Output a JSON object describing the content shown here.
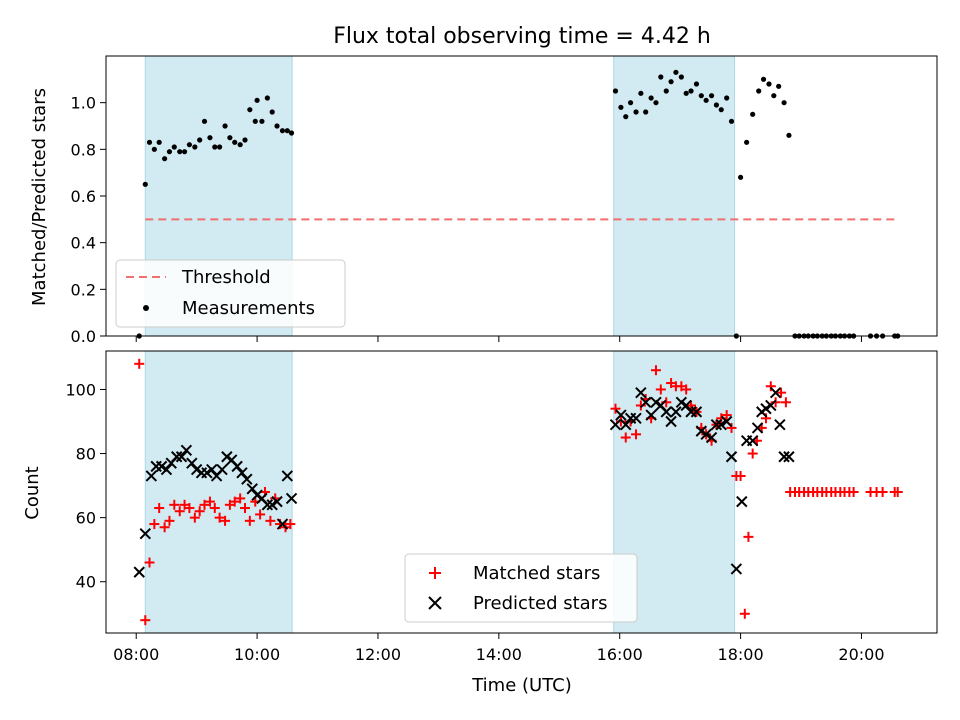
{
  "title": "Flux total observing time = 4.42 h",
  "colors": {
    "shade": "#add8e6",
    "threshold": "#f07070",
    "measurement": "#000000",
    "matched": "#ff0000",
    "predicted": "#000000"
  },
  "chart_data": [
    {
      "type": "scatter",
      "ylabel": "Matched/Predicted stars",
      "xlim": [
        7.5,
        21.25
      ],
      "ylim": [
        0,
        1.2
      ],
      "yticks": [
        0.0,
        0.2,
        0.4,
        0.6,
        0.8,
        1.0
      ],
      "ytick_labels": [
        "0.0",
        "0.2",
        "0.4",
        "0.6",
        "0.8",
        "1.0"
      ],
      "xticks": [
        8,
        10,
        12,
        14,
        16,
        18,
        20
      ],
      "shaded_intervals": [
        [
          8.15,
          10.58
        ],
        [
          15.9,
          17.9
        ]
      ],
      "threshold": {
        "name": "Threshold",
        "x": [
          8.15,
          20.6
        ],
        "y": 0.5
      },
      "legend": {
        "position": "lower left",
        "entries": [
          "Threshold",
          "Measurements"
        ]
      },
      "series": [
        {
          "name": "Measurements",
          "x": [
            8.05,
            8.15,
            8.22,
            8.3,
            8.38,
            8.47,
            8.55,
            8.63,
            8.72,
            8.8,
            8.88,
            8.97,
            9.05,
            9.13,
            9.22,
            9.3,
            9.38,
            9.47,
            9.55,
            9.63,
            9.72,
            9.8,
            9.88,
            9.97,
            10.0,
            10.08,
            10.17,
            10.25,
            10.33,
            10.42,
            10.5,
            10.57,
            15.93,
            16.02,
            16.1,
            16.18,
            16.27,
            16.35,
            16.43,
            16.52,
            16.6,
            16.68,
            16.77,
            16.85,
            16.93,
            17.02,
            17.1,
            17.18,
            17.27,
            17.35,
            17.43,
            17.52,
            17.6,
            17.68,
            17.77,
            17.85,
            17.93,
            18.0,
            18.1,
            18.2,
            18.3,
            18.38,
            18.47,
            18.55,
            18.63,
            18.72,
            18.8,
            18.9,
            18.97,
            19.05,
            19.12,
            19.2,
            19.27,
            19.35,
            19.42,
            19.5,
            19.57,
            19.65,
            19.72,
            19.8,
            19.87,
            20.15,
            20.25,
            20.35,
            20.55,
            20.6
          ],
          "y": [
            0.0,
            0.65,
            0.83,
            0.8,
            0.83,
            0.76,
            0.79,
            0.81,
            0.79,
            0.79,
            0.82,
            0.81,
            0.84,
            0.92,
            0.85,
            0.81,
            0.81,
            0.9,
            0.85,
            0.83,
            0.82,
            0.84,
            0.97,
            0.92,
            1.01,
            0.92,
            1.02,
            0.96,
            0.9,
            0.88,
            0.88,
            0.87,
            1.05,
            0.98,
            0.94,
            1.0,
            0.96,
            1.04,
            0.96,
            1.02,
            1.0,
            1.11,
            1.05,
            1.09,
            1.13,
            1.11,
            1.04,
            1.05,
            1.08,
            1.03,
            1.01,
            1.03,
            0.99,
            0.97,
            1.02,
            0.92,
            0.0,
            0.68,
            0.83,
            0.95,
            1.05,
            1.1,
            1.08,
            1.03,
            1.07,
            1.0,
            0.86,
            0.0,
            0.0,
            0.0,
            0.0,
            0.0,
            0.0,
            0.0,
            0.0,
            0.0,
            0.0,
            0.0,
            0.0,
            0.0,
            0.0,
            0.0,
            0.0,
            0.0,
            0.0,
            0.0
          ]
        }
      ]
    },
    {
      "type": "scatter",
      "xlabel": "Time (UTC)",
      "ylabel": "Count",
      "xlim": [
        7.5,
        21.25
      ],
      "ylim": [
        24,
        112
      ],
      "yticks": [
        40,
        60,
        80,
        100
      ],
      "xticks": [
        8,
        10,
        12,
        14,
        16,
        18,
        20
      ],
      "xtick_labels": [
        "08:00",
        "10:00",
        "12:00",
        "14:00",
        "16:00",
        "18:00",
        "20:00"
      ],
      "shaded_intervals": [
        [
          8.15,
          10.58
        ],
        [
          15.9,
          17.9
        ]
      ],
      "legend": {
        "position": "lower center",
        "entries": [
          "Matched stars",
          "Predicted stars"
        ]
      },
      "series": [
        {
          "name": "Matched stars",
          "x": [
            8.05,
            8.15,
            8.22,
            8.3,
            8.38,
            8.47,
            8.55,
            8.63,
            8.72,
            8.8,
            8.88,
            8.97,
            9.05,
            9.13,
            9.22,
            9.3,
            9.38,
            9.47,
            9.55,
            9.63,
            9.72,
            9.8,
            9.88,
            9.97,
            10.05,
            10.13,
            10.22,
            10.3,
            10.38,
            10.47,
            10.55,
            15.93,
            16.02,
            16.1,
            16.18,
            16.27,
            16.35,
            16.43,
            16.52,
            16.6,
            16.68,
            16.77,
            16.85,
            16.93,
            17.02,
            17.1,
            17.18,
            17.27,
            17.35,
            17.43,
            17.52,
            17.6,
            17.68,
            17.77,
            17.85,
            17.93,
            18.0,
            18.07,
            18.13,
            18.2,
            18.27,
            18.35,
            18.42,
            18.5,
            18.58,
            18.67,
            18.75,
            18.82,
            18.9,
            18.97,
            19.05,
            19.12,
            19.2,
            19.27,
            19.35,
            19.42,
            19.5,
            19.57,
            19.65,
            19.72,
            19.8,
            19.87,
            20.15,
            20.25,
            20.35,
            20.55,
            20.6
          ],
          "y": [
            108,
            28,
            46,
            58,
            63,
            57,
            59,
            64,
            62,
            64,
            63,
            60,
            62,
            64,
            65,
            63,
            60,
            59,
            64,
            65,
            66,
            63,
            59,
            65,
            61,
            68,
            59,
            66,
            58,
            57,
            58,
            94,
            90,
            85,
            90,
            86,
            95,
            97,
            91,
            106,
            100,
            96,
            102,
            101,
            101,
            100,
            95,
            93,
            88,
            86,
            84,
            89,
            91,
            92,
            88,
            73,
            73,
            30,
            54,
            80,
            84,
            88,
            91,
            101,
            96,
            99,
            96,
            68,
            68,
            68,
            68,
            68,
            68,
            68,
            68,
            68,
            68,
            68,
            68,
            68,
            68,
            68,
            68,
            68,
            68,
            68,
            68
          ]
        },
        {
          "name": "Predicted stars",
          "x": [
            8.05,
            8.15,
            8.25,
            8.33,
            8.42,
            8.5,
            8.58,
            8.67,
            8.75,
            8.83,
            8.92,
            9.0,
            9.08,
            9.17,
            9.25,
            9.33,
            9.42,
            9.5,
            9.58,
            9.67,
            9.75,
            9.83,
            9.92,
            10.0,
            10.08,
            10.17,
            10.25,
            10.33,
            10.42,
            10.5,
            10.57,
            15.93,
            16.02,
            16.1,
            16.18,
            16.27,
            16.35,
            16.43,
            16.52,
            16.6,
            16.68,
            16.77,
            16.85,
            16.93,
            17.02,
            17.1,
            17.18,
            17.27,
            17.35,
            17.43,
            17.52,
            17.6,
            17.68,
            17.77,
            17.85,
            17.93,
            18.02,
            18.1,
            18.2,
            18.28,
            18.35,
            18.42,
            18.5,
            18.58,
            18.65,
            18.72,
            18.8
          ],
          "y": [
            43,
            55,
            73,
            76,
            76,
            75,
            77,
            79,
            79,
            81,
            77,
            75,
            74,
            74,
            75,
            73,
            75,
            79,
            78,
            76,
            74,
            72,
            69,
            67,
            66,
            64,
            64,
            65,
            58,
            73,
            66,
            89,
            92,
            89,
            91,
            91,
            99,
            96,
            92,
            96,
            95,
            93,
            90,
            93,
            96,
            95,
            93,
            93,
            87,
            86,
            85,
            89,
            89,
            90,
            79,
            44,
            65,
            84,
            84,
            88,
            93,
            94,
            95,
            99,
            89,
            79,
            79
          ]
        }
      ]
    }
  ]
}
